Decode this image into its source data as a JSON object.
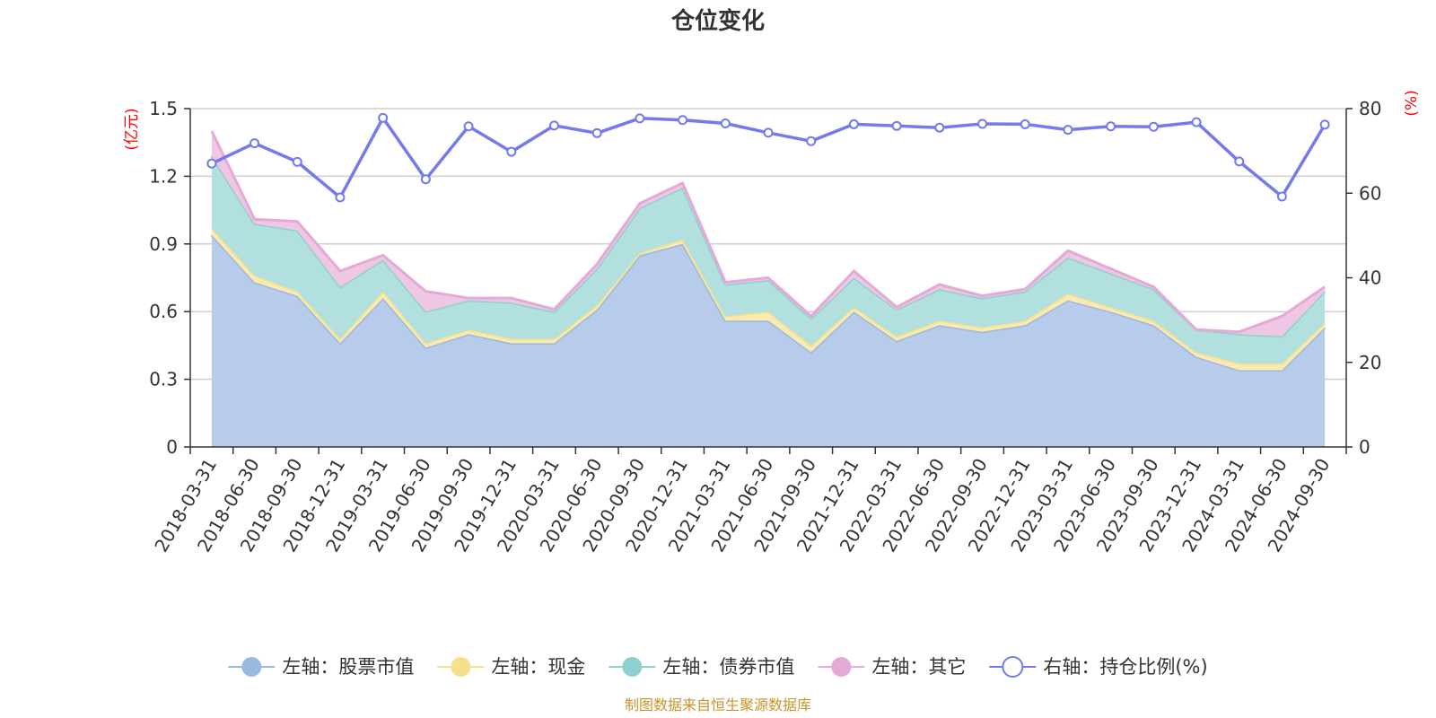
{
  "chart_data": {
    "type": "area",
    "title": "仓位变化",
    "left_axis_unit": "(亿元)",
    "right_axis_unit": "(%)",
    "ylim_left": [
      0,
      1.5
    ],
    "yticks_left": [
      "0",
      "0.3",
      "0.6",
      "0.9",
      "1.2",
      "1.5"
    ],
    "ylim_right": [
      0,
      80
    ],
    "yticks_right": [
      "0",
      "20",
      "40",
      "60",
      "80"
    ],
    "grid": true,
    "legend_position": "bottom",
    "categories": [
      "2018-03-31",
      "2018-06-30",
      "2018-09-30",
      "2018-12-31",
      "2019-03-31",
      "2019-06-30",
      "2019-09-30",
      "2019-12-31",
      "2020-03-31",
      "2020-06-30",
      "2020-09-30",
      "2020-12-31",
      "2021-03-31",
      "2021-06-30",
      "2021-09-30",
      "2021-12-31",
      "2022-03-31",
      "2022-06-30",
      "2022-09-30",
      "2022-12-31",
      "2023-03-31",
      "2023-06-30",
      "2023-09-30",
      "2023-12-31",
      "2024-03-31",
      "2024-06-30",
      "2024-09-30"
    ],
    "series": [
      {
        "name": "左轴：股票市值",
        "axis": "left",
        "stack": true,
        "color": "#9bb8e0",
        "fill": "#b7cbea",
        "values": [
          0.94,
          0.73,
          0.67,
          0.46,
          0.66,
          0.44,
          0.5,
          0.46,
          0.46,
          0.61,
          0.85,
          0.9,
          0.56,
          0.56,
          0.42,
          0.6,
          0.47,
          0.54,
          0.51,
          0.54,
          0.65,
          0.6,
          0.54,
          0.4,
          0.34,
          0.34,
          0.53
        ]
      },
      {
        "name": "左轴：现金",
        "axis": "left",
        "stack": true,
        "color": "#f5e08e",
        "fill": "#f8eab0",
        "values": [
          0.03,
          0.03,
          0.02,
          0.02,
          0.03,
          0.02,
          0.02,
          0.02,
          0.02,
          0.02,
          0.01,
          0.02,
          0.02,
          0.04,
          0.03,
          0.02,
          0.02,
          0.02,
          0.02,
          0.02,
          0.03,
          0.02,
          0.02,
          0.02,
          0.03,
          0.03,
          0.02
        ]
      },
      {
        "name": "左轴：债券市值",
        "axis": "left",
        "stack": true,
        "color": "#8dd0cf",
        "fill": "#b2e0de",
        "values": [
          0.32,
          0.23,
          0.27,
          0.23,
          0.14,
          0.14,
          0.13,
          0.16,
          0.12,
          0.16,
          0.2,
          0.23,
          0.14,
          0.14,
          0.12,
          0.13,
          0.12,
          0.14,
          0.13,
          0.13,
          0.16,
          0.15,
          0.14,
          0.1,
          0.13,
          0.12,
          0.14
        ]
      },
      {
        "name": "左轴：其它",
        "axis": "left",
        "stack": true,
        "color": "#e4a9d6",
        "fill": "#eec7e5",
        "values": [
          0.11,
          0.02,
          0.04,
          0.07,
          0.02,
          0.09,
          0.01,
          0.02,
          0.01,
          0.02,
          0.02,
          0.02,
          0.01,
          0.01,
          0.01,
          0.03,
          0.01,
          0.02,
          0.01,
          0.01,
          0.03,
          0.02,
          0.01,
          0.0,
          0.01,
          0.09,
          0.02
        ]
      },
      {
        "name": "右轴：持仓比例(%)",
        "axis": "right",
        "stack": false,
        "color": "#7479ee",
        "values": [
          67.0,
          71.8,
          67.4,
          59.0,
          77.8,
          63.3,
          75.8,
          69.8,
          76.0,
          74.2,
          77.7,
          77.3,
          76.5,
          74.3,
          72.3,
          76.3,
          75.9,
          75.5,
          76.4,
          76.3,
          75.0,
          75.8,
          75.7,
          76.8,
          67.5,
          59.2,
          76.2
        ]
      }
    ],
    "source_note": "制图数据来自恒生聚源数据库"
  }
}
